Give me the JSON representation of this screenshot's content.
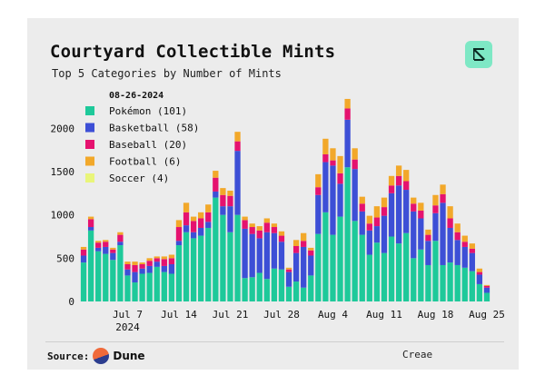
{
  "title": "Courtyard Collectible Mints",
  "subtitle": "Top 5 Categories by Number of Mints",
  "footer": {
    "source_label": "Source:",
    "source_name": "Dune",
    "creator": "Crea\u0015e"
  },
  "chart_data": {
    "type": "bar",
    "stacked": true,
    "title": "Courtyard Collectible Mints",
    "subtitle": "Top 5 Categories by Number of Mints",
    "legend_title": "08-26-2024",
    "legend_position": "top-left",
    "ylim": [
      0,
      2350
    ],
    "yticks": [
      0,
      500,
      1000,
      1500,
      2000
    ],
    "xtick_labels": [
      {
        "index": 6,
        "label": "Jul 7"
      },
      {
        "index": 13,
        "label": "Jul 14"
      },
      {
        "index": 20,
        "label": "Jul 21"
      },
      {
        "index": 27,
        "label": "Jul 28"
      },
      {
        "index": 34,
        "label": "Aug 4"
      },
      {
        "index": 41,
        "label": "Aug 11"
      },
      {
        "index": 48,
        "label": "Aug 18"
      },
      {
        "index": 55,
        "label": "Aug 25"
      }
    ],
    "x_sub_label": "2024",
    "series": [
      {
        "name": "Pokémon",
        "legend_label": "Pokémon (101)",
        "color": "#1ec99a",
        "values": [
          450,
          820,
          580,
          550,
          480,
          650,
          300,
          220,
          320,
          330,
          400,
          340,
          320,
          650,
          800,
          730,
          760,
          850,
          1200,
          1000,
          800,
          1000,
          270,
          280,
          330,
          260,
          380,
          370,
          170,
          230,
          160,
          300,
          780,
          1030,
          770,
          980,
          1550,
          930,
          770,
          540,
          680,
          560,
          750,
          670,
          790,
          500,
          600,
          420,
          700,
          420,
          450,
          420,
          390,
          350,
          200,
          100
        ]
      },
      {
        "name": "Basketball",
        "legend_label": "Basketball (58)",
        "color": "#3d4fd6",
        "values": [
          80,
          40,
          40,
          80,
          80,
          40,
          70,
          120,
          60,
          80,
          60,
          70,
          110,
          50,
          80,
          70,
          90,
          70,
          70,
          100,
          300,
          740,
          570,
          500,
          400,
          540,
          410,
          320,
          170,
          330,
          470,
          230,
          450,
          580,
          800,
          380,
          550,
          600,
          270,
          280,
          190,
          430,
          500,
          670,
          500,
          540,
          360,
          280,
          320,
          720,
          400,
          290,
          240,
          210,
          110,
          60
        ]
      },
      {
        "name": "Baseball",
        "legend_label": "Baseball (20)",
        "color": "#e5126f",
        "values": [
          70,
          90,
          60,
          60,
          40,
          80,
          60,
          80,
          50,
          60,
          40,
          80,
          70,
          160,
          150,
          130,
          110,
          110,
          160,
          130,
          120,
          110,
          100,
          80,
          90,
          110,
          70,
          70,
          30,
          80,
          70,
          60,
          90,
          90,
          60,
          120,
          130,
          110,
          90,
          80,
          100,
          100,
          90,
          110,
          100,
          90,
          90,
          70,
          90,
          100,
          110,
          90,
          60,
          50,
          30,
          20
        ]
      },
      {
        "name": "Football",
        "legend_label": "Football (6)",
        "color": "#f2a82a",
        "values": [
          30,
          30,
          20,
          20,
          20,
          30,
          30,
          40,
          20,
          30,
          20,
          30,
          40,
          80,
          110,
          50,
          70,
          90,
          80,
          80,
          60,
          110,
          40,
          40,
          50,
          50,
          40,
          50,
          20,
          70,
          90,
          30,
          150,
          180,
          140,
          200,
          110,
          130,
          80,
          90,
          130,
          110,
          110,
          120,
          130,
          70,
          90,
          60,
          120,
          110,
          140,
          100,
          70,
          60,
          40,
          10
        ]
      },
      {
        "name": "Soccer",
        "legend_label": "Soccer (4)",
        "color": "#e9f57a",
        "values": [
          0,
          0,
          0,
          0,
          0,
          0,
          0,
          0,
          0,
          0,
          0,
          0,
          0,
          0,
          0,
          0,
          0,
          0,
          0,
          0,
          0,
          0,
          0,
          0,
          0,
          0,
          0,
          0,
          0,
          0,
          0,
          0,
          0,
          0,
          0,
          0,
          0,
          0,
          0,
          0,
          0,
          0,
          0,
          0,
          0,
          0,
          0,
          0,
          0,
          0,
          0,
          0,
          0,
          0,
          0,
          0
        ]
      }
    ]
  }
}
